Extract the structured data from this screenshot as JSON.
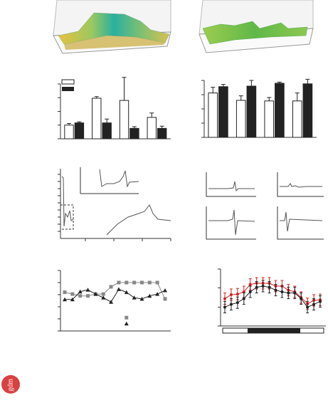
{
  "logo": "gdm",
  "chart_data": [
    {
      "type": "bar",
      "categories": [
        null,
        null,
        null,
        null
      ],
      "ylim": [
        0,
        100
      ],
      "yticks": [
        0,
        25,
        50,
        75,
        100
      ],
      "series": [
        {
          "color": "#ffffff",
          "values": [
            25,
            74,
            70,
            39
          ],
          "errors": [
            3,
            3,
            42,
            8
          ]
        },
        {
          "color": "#222222",
          "values": [
            29,
            29,
            19,
            19
          ],
          "errors": [
            2,
            7,
            3,
            4
          ]
        }
      ]
    },
    {
      "type": "bar",
      "categories": [
        null,
        null,
        null,
        null
      ],
      "ylim": [
        0,
        100
      ],
      "yticks": [
        0,
        25,
        50,
        75,
        100
      ],
      "series": [
        {
          "color": "#ffffff",
          "values": [
            78,
            65,
            64,
            64
          ],
          "errors": [
            10,
            8,
            6,
            14
          ]
        },
        {
          "color": "#222222",
          "values": [
            89,
            90,
            95,
            94
          ],
          "errors": [
            4,
            10,
            2,
            8
          ]
        }
      ]
    },
    {
      "type": "line",
      "categories": [
        null,
        null,
        null,
        null,
        null,
        null,
        null,
        null,
        null,
        null,
        null,
        null,
        null,
        null
      ],
      "ylim": [
        0,
        100
      ],
      "yticks": [
        0,
        20,
        40,
        60,
        80,
        100
      ],
      "series": [
        {
          "color": "#888888",
          "marker": "square",
          "values": [
            64,
            61,
            58,
            58,
            61,
            61,
            73,
            80,
            80,
            80,
            80,
            80,
            80,
            53
          ]
        },
        {
          "color": "#222222",
          "marker": "triangle",
          "values": [
            52,
            52,
            65,
            68,
            61,
            55,
            48,
            69,
            64,
            55,
            53,
            58,
            61,
            67
          ]
        },
        {
          "color": "#888888",
          "marker": "square",
          "values": [
            null,
            null,
            null,
            null,
            null,
            null,
            null,
            null,
            22,
            null,
            null,
            null,
            null,
            null
          ]
        },
        {
          "color": "#222222",
          "marker": "triangle",
          "values": [
            null,
            null,
            null,
            null,
            null,
            null,
            null,
            null,
            12,
            null,
            null,
            null,
            null,
            null
          ]
        }
      ]
    },
    {
      "type": "line",
      "categories": [
        null,
        null,
        null,
        null,
        null,
        null,
        null,
        null,
        null,
        null,
        null,
        null,
        null,
        null,
        null,
        null
      ],
      "ylim": [
        0,
        100
      ],
      "yticks": [
        0,
        33,
        67,
        100
      ],
      "series": [
        {
          "color": "#d62020",
          "marker": "circle",
          "values": [
            48,
            55,
            56,
            60,
            73,
            75,
            75,
            75,
            70,
            70,
            63,
            60,
            50,
            39,
            45,
            46
          ],
          "errors": [
            10,
            10,
            10,
            10,
            10,
            10,
            10,
            10,
            10,
            10,
            10,
            10,
            10,
            10,
            10,
            10
          ]
        },
        {
          "color": "#222222",
          "marker": "circle",
          "values": [
            33,
            38,
            41,
            48,
            60,
            68,
            70,
            68,
            63,
            60,
            58,
            58,
            48,
            33,
            38,
            43
          ],
          "errors": [
            10,
            10,
            10,
            10,
            10,
            10,
            10,
            10,
            10,
            10,
            10,
            10,
            10,
            10,
            10,
            10
          ]
        }
      ]
    }
  ]
}
